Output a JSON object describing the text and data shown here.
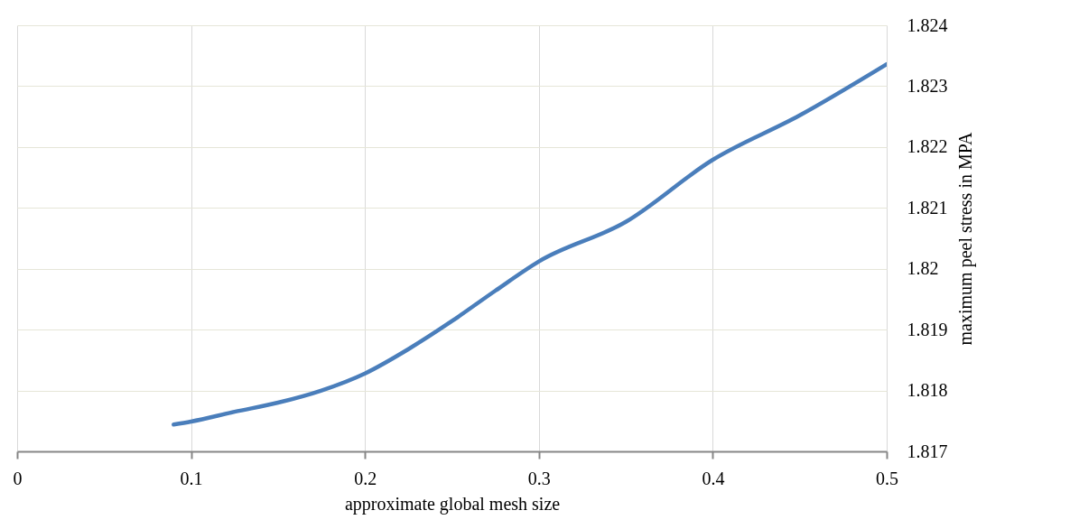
{
  "chart_data": {
    "type": "line",
    "xlabel": "approximate  global mesh size",
    "ylabel": "maximum peel stress in MPA",
    "x": [
      0.09,
      0.1,
      0.125,
      0.15,
      0.175,
      0.2,
      0.225,
      0.25,
      0.275,
      0.3,
      0.35,
      0.4,
      0.45,
      0.5
    ],
    "series": [
      {
        "color": "#4a7ebb",
        "values": [
          1.81744,
          1.81749,
          1.81765,
          1.8178,
          1.818,
          1.81828,
          1.81868,
          1.81914,
          1.81964,
          1.82012,
          1.82077,
          1.82179,
          1.82252,
          1.82336
        ]
      }
    ],
    "xlim": [
      0,
      0.5
    ],
    "xticks": [
      0,
      0.1,
      0.2,
      0.3,
      0.4,
      0.5
    ],
    "ylim": [
      1.817,
      1.824
    ],
    "yticks": [
      1.817,
      1.818,
      1.819,
      1.82,
      1.821,
      1.822,
      1.823,
      1.824
    ],
    "grid": true,
    "marker": "none",
    "line_style": "solid",
    "legend": false
  }
}
